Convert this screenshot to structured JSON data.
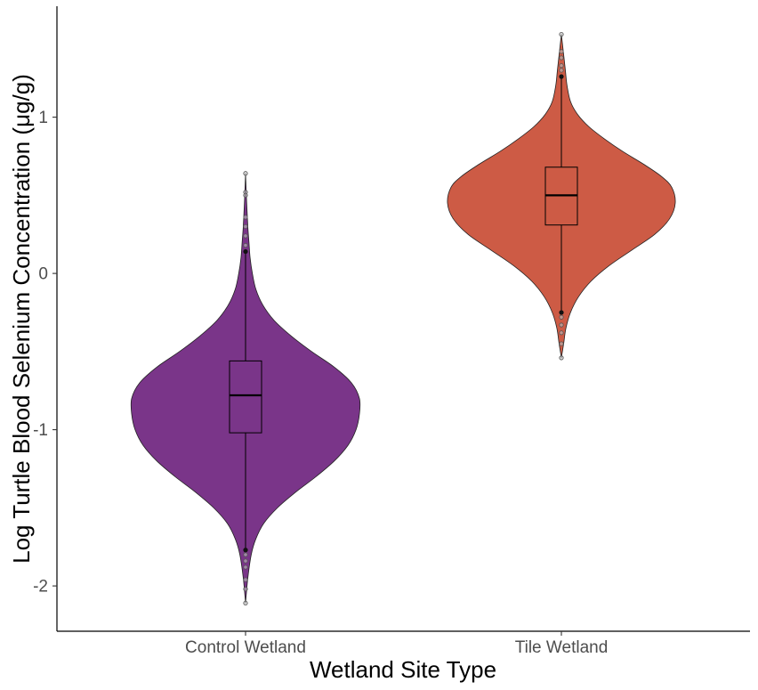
{
  "chart_data": {
    "type": "violin",
    "title": "",
    "xlabel": "Wetland Site Type",
    "ylabel": "Log Turtle Blood Selenium Concentration (μg/g)",
    "ylim": [
      -2.29,
      1.71
    ],
    "y_ticks": [
      -2,
      -1,
      0,
      1
    ],
    "y_tick_labels": [
      "-2",
      "-1",
      "0",
      "1"
    ],
    "categories": [
      "Control Wetland",
      "Tile Wetland"
    ],
    "grid": false,
    "legend": "none",
    "groups": [
      {
        "category": "Control Wetland",
        "color": "#7a3589",
        "box": {
          "q1": -1.02,
          "median": -0.78,
          "q3": -0.56,
          "whisker_low": -1.77,
          "whisker_high": 0.14
        },
        "outliers": [
          0.64,
          0.52,
          0.5,
          0.36,
          0.3,
          0.24,
          0.18,
          -1.8,
          -1.84,
          -1.88,
          -1.96,
          -2.02,
          -2.11
        ],
        "density": [
          [
            -2.11,
            0.0
          ],
          [
            -1.95,
            0.02
          ],
          [
            -1.8,
            0.05
          ],
          [
            -1.7,
            0.09
          ],
          [
            -1.6,
            0.16
          ],
          [
            -1.5,
            0.28
          ],
          [
            -1.4,
            0.44
          ],
          [
            -1.3,
            0.62
          ],
          [
            -1.2,
            0.78
          ],
          [
            -1.1,
            0.9
          ],
          [
            -1.0,
            0.97
          ],
          [
            -0.9,
            1.0
          ],
          [
            -0.8,
            1.0
          ],
          [
            -0.7,
            0.93
          ],
          [
            -0.6,
            0.78
          ],
          [
            -0.5,
            0.58
          ],
          [
            -0.4,
            0.4
          ],
          [
            -0.3,
            0.25
          ],
          [
            -0.2,
            0.15
          ],
          [
            -0.1,
            0.09
          ],
          [
            0.0,
            0.06
          ],
          [
            0.1,
            0.04
          ],
          [
            0.2,
            0.03
          ],
          [
            0.3,
            0.02
          ],
          [
            0.45,
            0.01
          ],
          [
            0.64,
            0.0
          ]
        ]
      },
      {
        "category": "Tile Wetland",
        "color": "#cd5b45",
        "box": {
          "q1": 0.31,
          "median": 0.5,
          "q3": 0.68,
          "whisker_low": -0.25,
          "whisker_high": 1.26
        },
        "outliers": [
          1.53,
          1.42,
          1.38,
          1.33,
          1.3,
          -0.28,
          -0.33,
          -0.38,
          -0.45,
          -0.54
        ],
        "density": [
          [
            -0.54,
            0.0
          ],
          [
            -0.45,
            0.02
          ],
          [
            -0.35,
            0.04
          ],
          [
            -0.25,
            0.08
          ],
          [
            -0.15,
            0.15
          ],
          [
            -0.05,
            0.26
          ],
          [
            0.05,
            0.42
          ],
          [
            0.15,
            0.62
          ],
          [
            0.25,
            0.82
          ],
          [
            0.35,
            0.95
          ],
          [
            0.45,
            1.0
          ],
          [
            0.55,
            0.97
          ],
          [
            0.62,
            0.88
          ],
          [
            0.7,
            0.72
          ],
          [
            0.78,
            0.54
          ],
          [
            0.86,
            0.38
          ],
          [
            0.94,
            0.24
          ],
          [
            1.02,
            0.14
          ],
          [
            1.1,
            0.08
          ],
          [
            1.2,
            0.05
          ],
          [
            1.3,
            0.035
          ],
          [
            1.4,
            0.02
          ],
          [
            1.53,
            0.0
          ]
        ]
      }
    ]
  }
}
